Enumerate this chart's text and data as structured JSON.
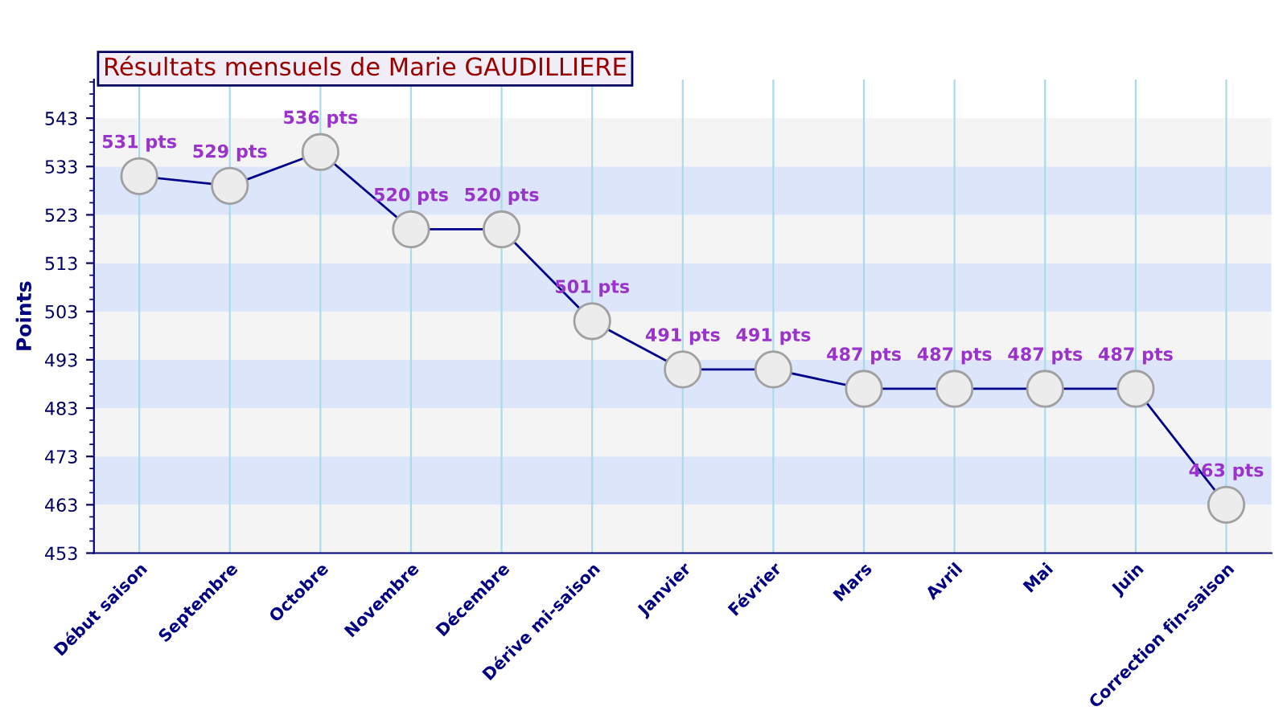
{
  "chart_data": {
    "type": "line",
    "title": "Résultats mensuels de Marie GAUDILLIERE",
    "ylabel": "Points",
    "categories": [
      "Début saison",
      "Septembre",
      "Octobre",
      "Novembre",
      "Décembre",
      "Dérive mi-saison",
      "Janvier",
      "Février",
      "Mars",
      "Avril",
      "Mai",
      "Juin",
      "Correction fin-saison"
    ],
    "series": [
      {
        "color": "#00008b",
        "values": [
          531,
          529,
          536,
          520,
          520,
          501,
          491,
          491,
          487,
          487,
          487,
          487,
          463
        ],
        "value_labels": [
          "531 pts",
          "529 pts",
          "536 pts",
          "520 pts",
          "520 pts",
          "501 pts",
          "491 pts",
          "491 pts",
          "487 pts",
          "487 pts",
          "487 pts",
          "487 pts",
          "463 pts"
        ]
      }
    ],
    "ylim": [
      453,
      551
    ],
    "yticks": [
      453,
      463,
      473,
      483,
      493,
      503,
      513,
      523,
      533,
      543
    ],
    "bands": [
      {
        "axis": "y",
        "from": 453,
        "to": 463,
        "color": "#f4f4f4"
      },
      {
        "axis": "y",
        "from": 463,
        "to": 473,
        "color": "#dde5fb"
      },
      {
        "axis": "y",
        "from": 473,
        "to": 483,
        "color": "#f4f4f4"
      },
      {
        "axis": "y",
        "from": 483,
        "to": 493,
        "color": "#dde5fb"
      },
      {
        "axis": "y",
        "from": 493,
        "to": 503,
        "color": "#f4f4f4"
      },
      {
        "axis": "y",
        "from": 503,
        "to": 513,
        "color": "#dde5fb"
      },
      {
        "axis": "y",
        "from": 513,
        "to": 523,
        "color": "#f4f4f4"
      },
      {
        "axis": "y",
        "from": 523,
        "to": 533,
        "color": "#dde5fb"
      },
      {
        "axis": "y",
        "from": 533,
        "to": 543,
        "color": "#f4f4f4"
      }
    ],
    "grid": "x",
    "marker": "circle",
    "line_style": "solid",
    "legend": false
  }
}
